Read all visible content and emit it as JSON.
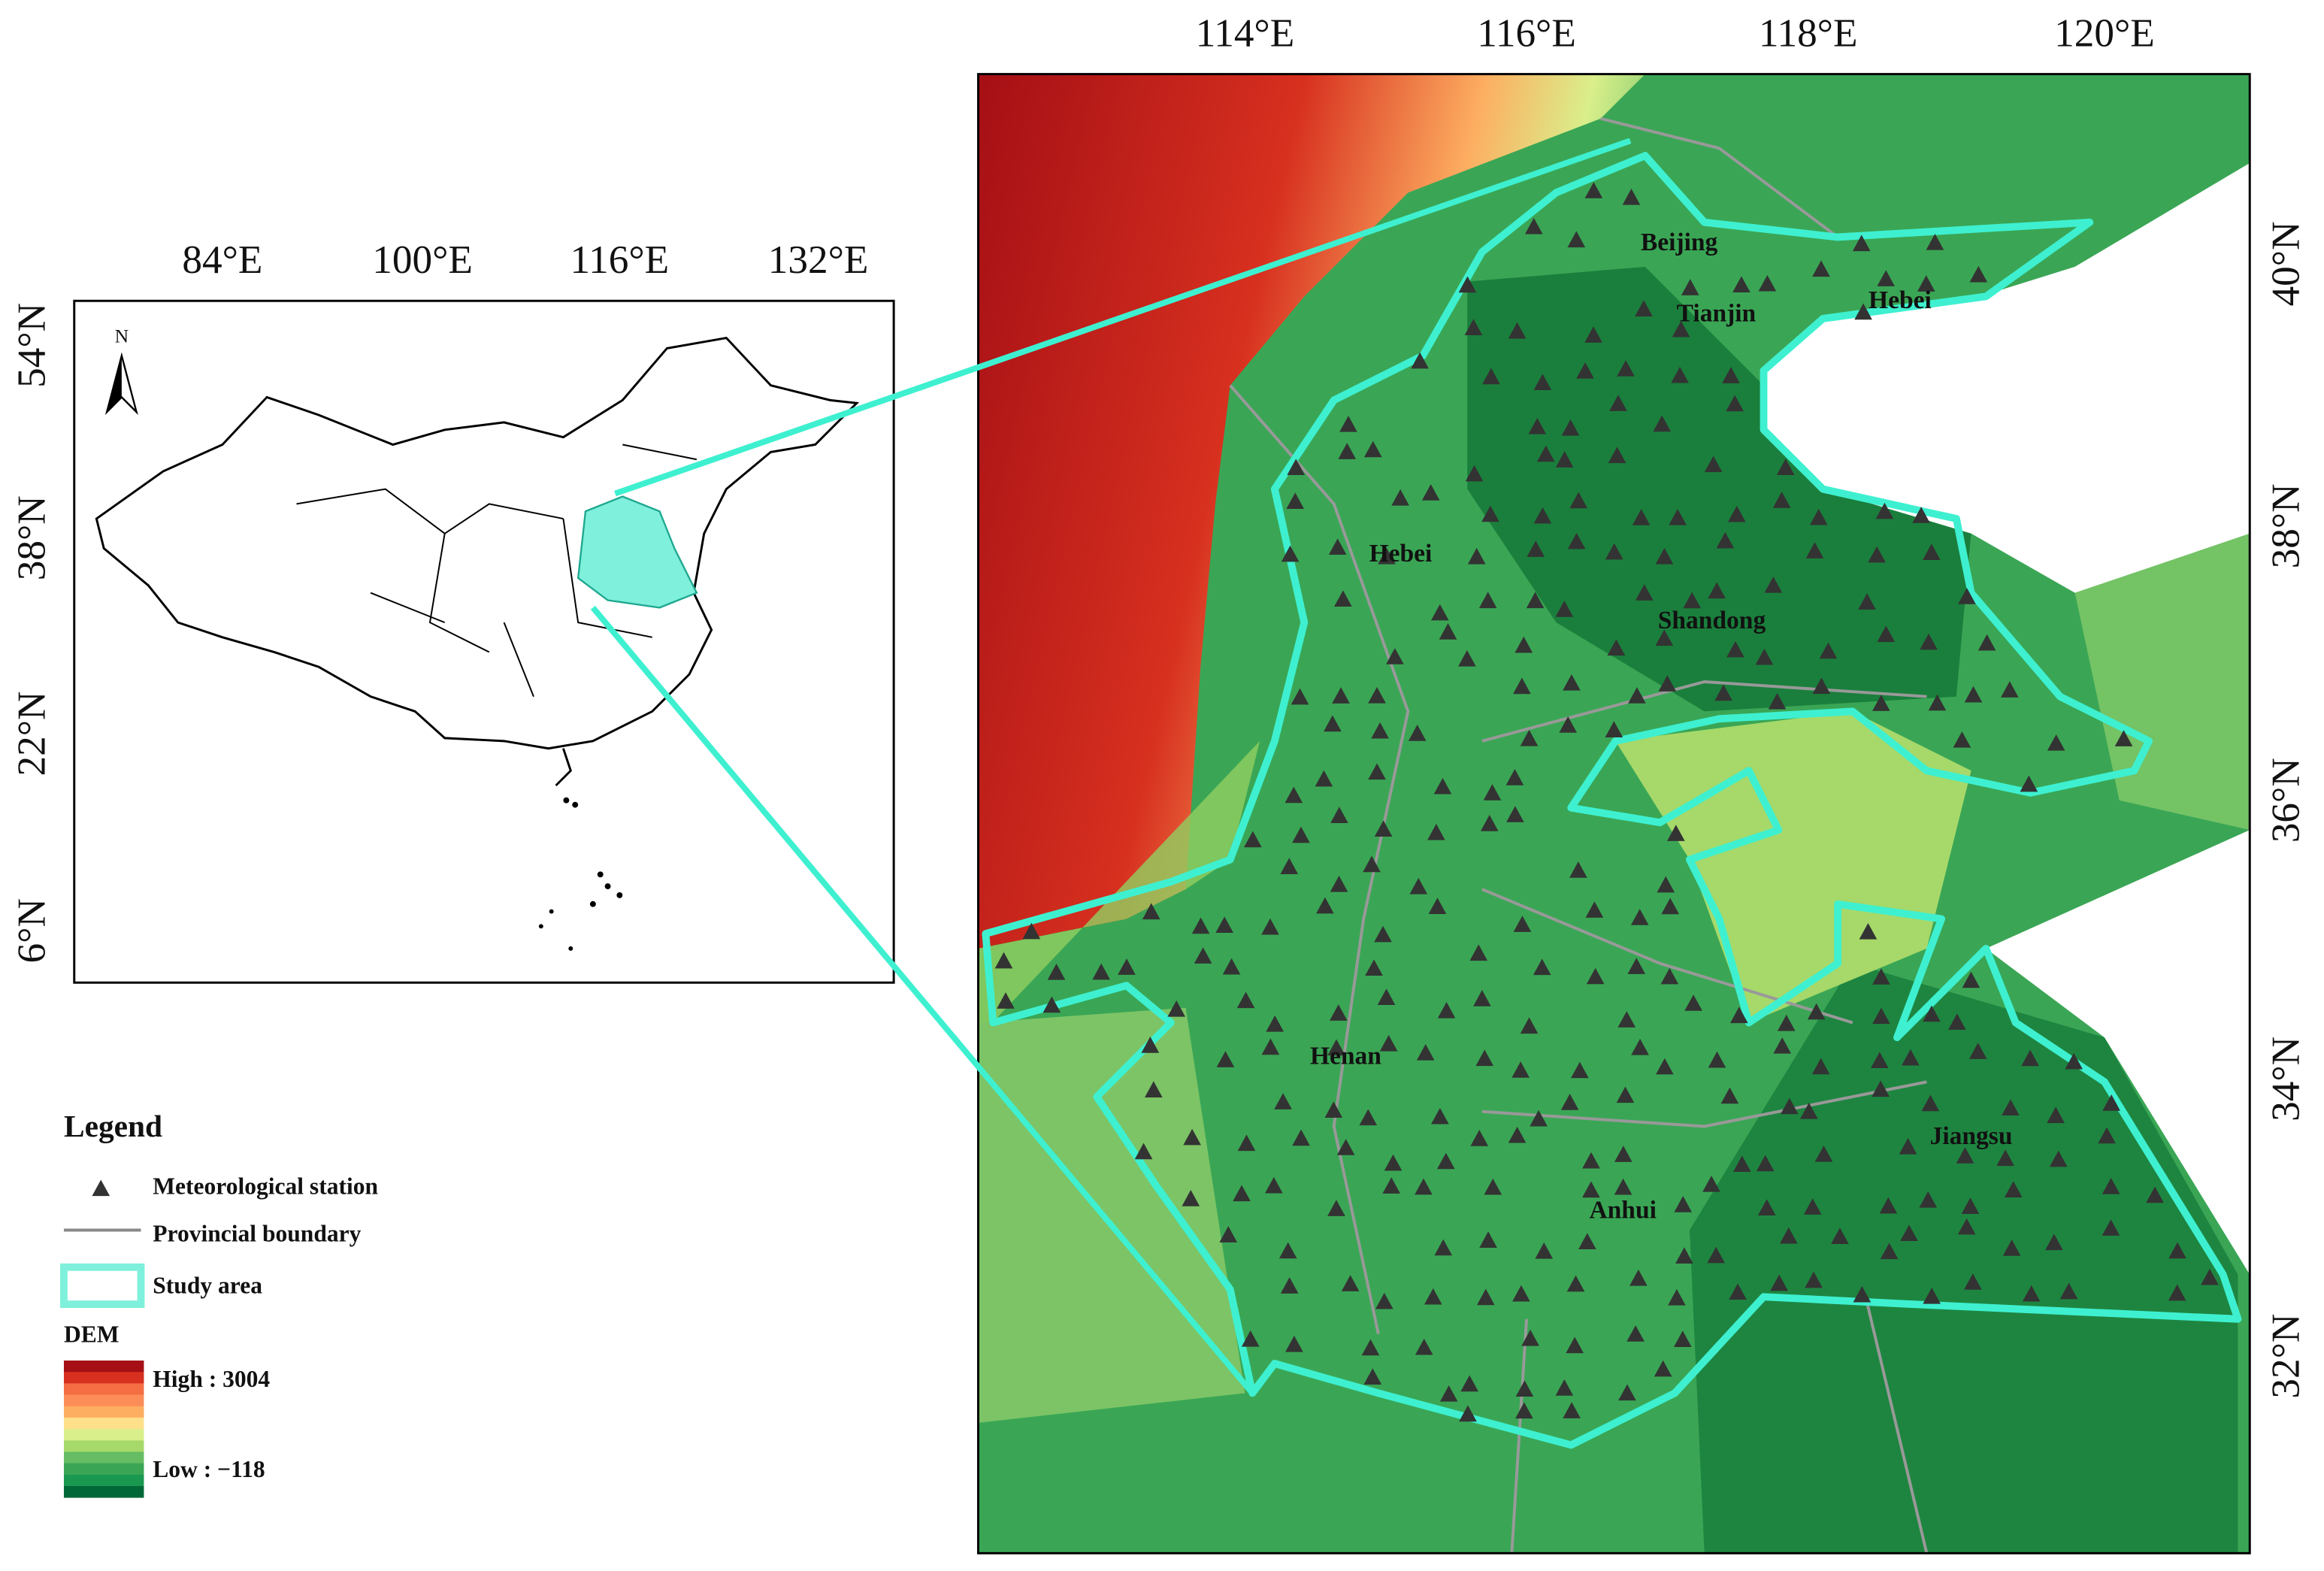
{
  "inset_map": {
    "x_labels": [
      "84°E",
      "100°E",
      "116°E",
      "132°E"
    ],
    "y_labels": [
      "54°N",
      "38°N",
      "22°N",
      "6°N"
    ],
    "north_label": "N"
  },
  "main_map": {
    "x_labels": [
      "114°E",
      "116°E",
      "118°E",
      "120°E"
    ],
    "y_labels": [
      "40°N",
      "38°N",
      "36°N",
      "34°N",
      "32°N"
    ],
    "province_labels": [
      "Beijing",
      "Tianjin",
      "Hebei",
      "Hebei",
      "Shandong",
      "Henan",
      "Anhui",
      "Jiangsu"
    ]
  },
  "legend": {
    "title": "Legend",
    "items": [
      "Meteorological station",
      "Provincial boundary",
      "Study area"
    ],
    "dem_title": "DEM",
    "high_label": "High : 3004",
    "low_label": "Low : −118"
  }
}
